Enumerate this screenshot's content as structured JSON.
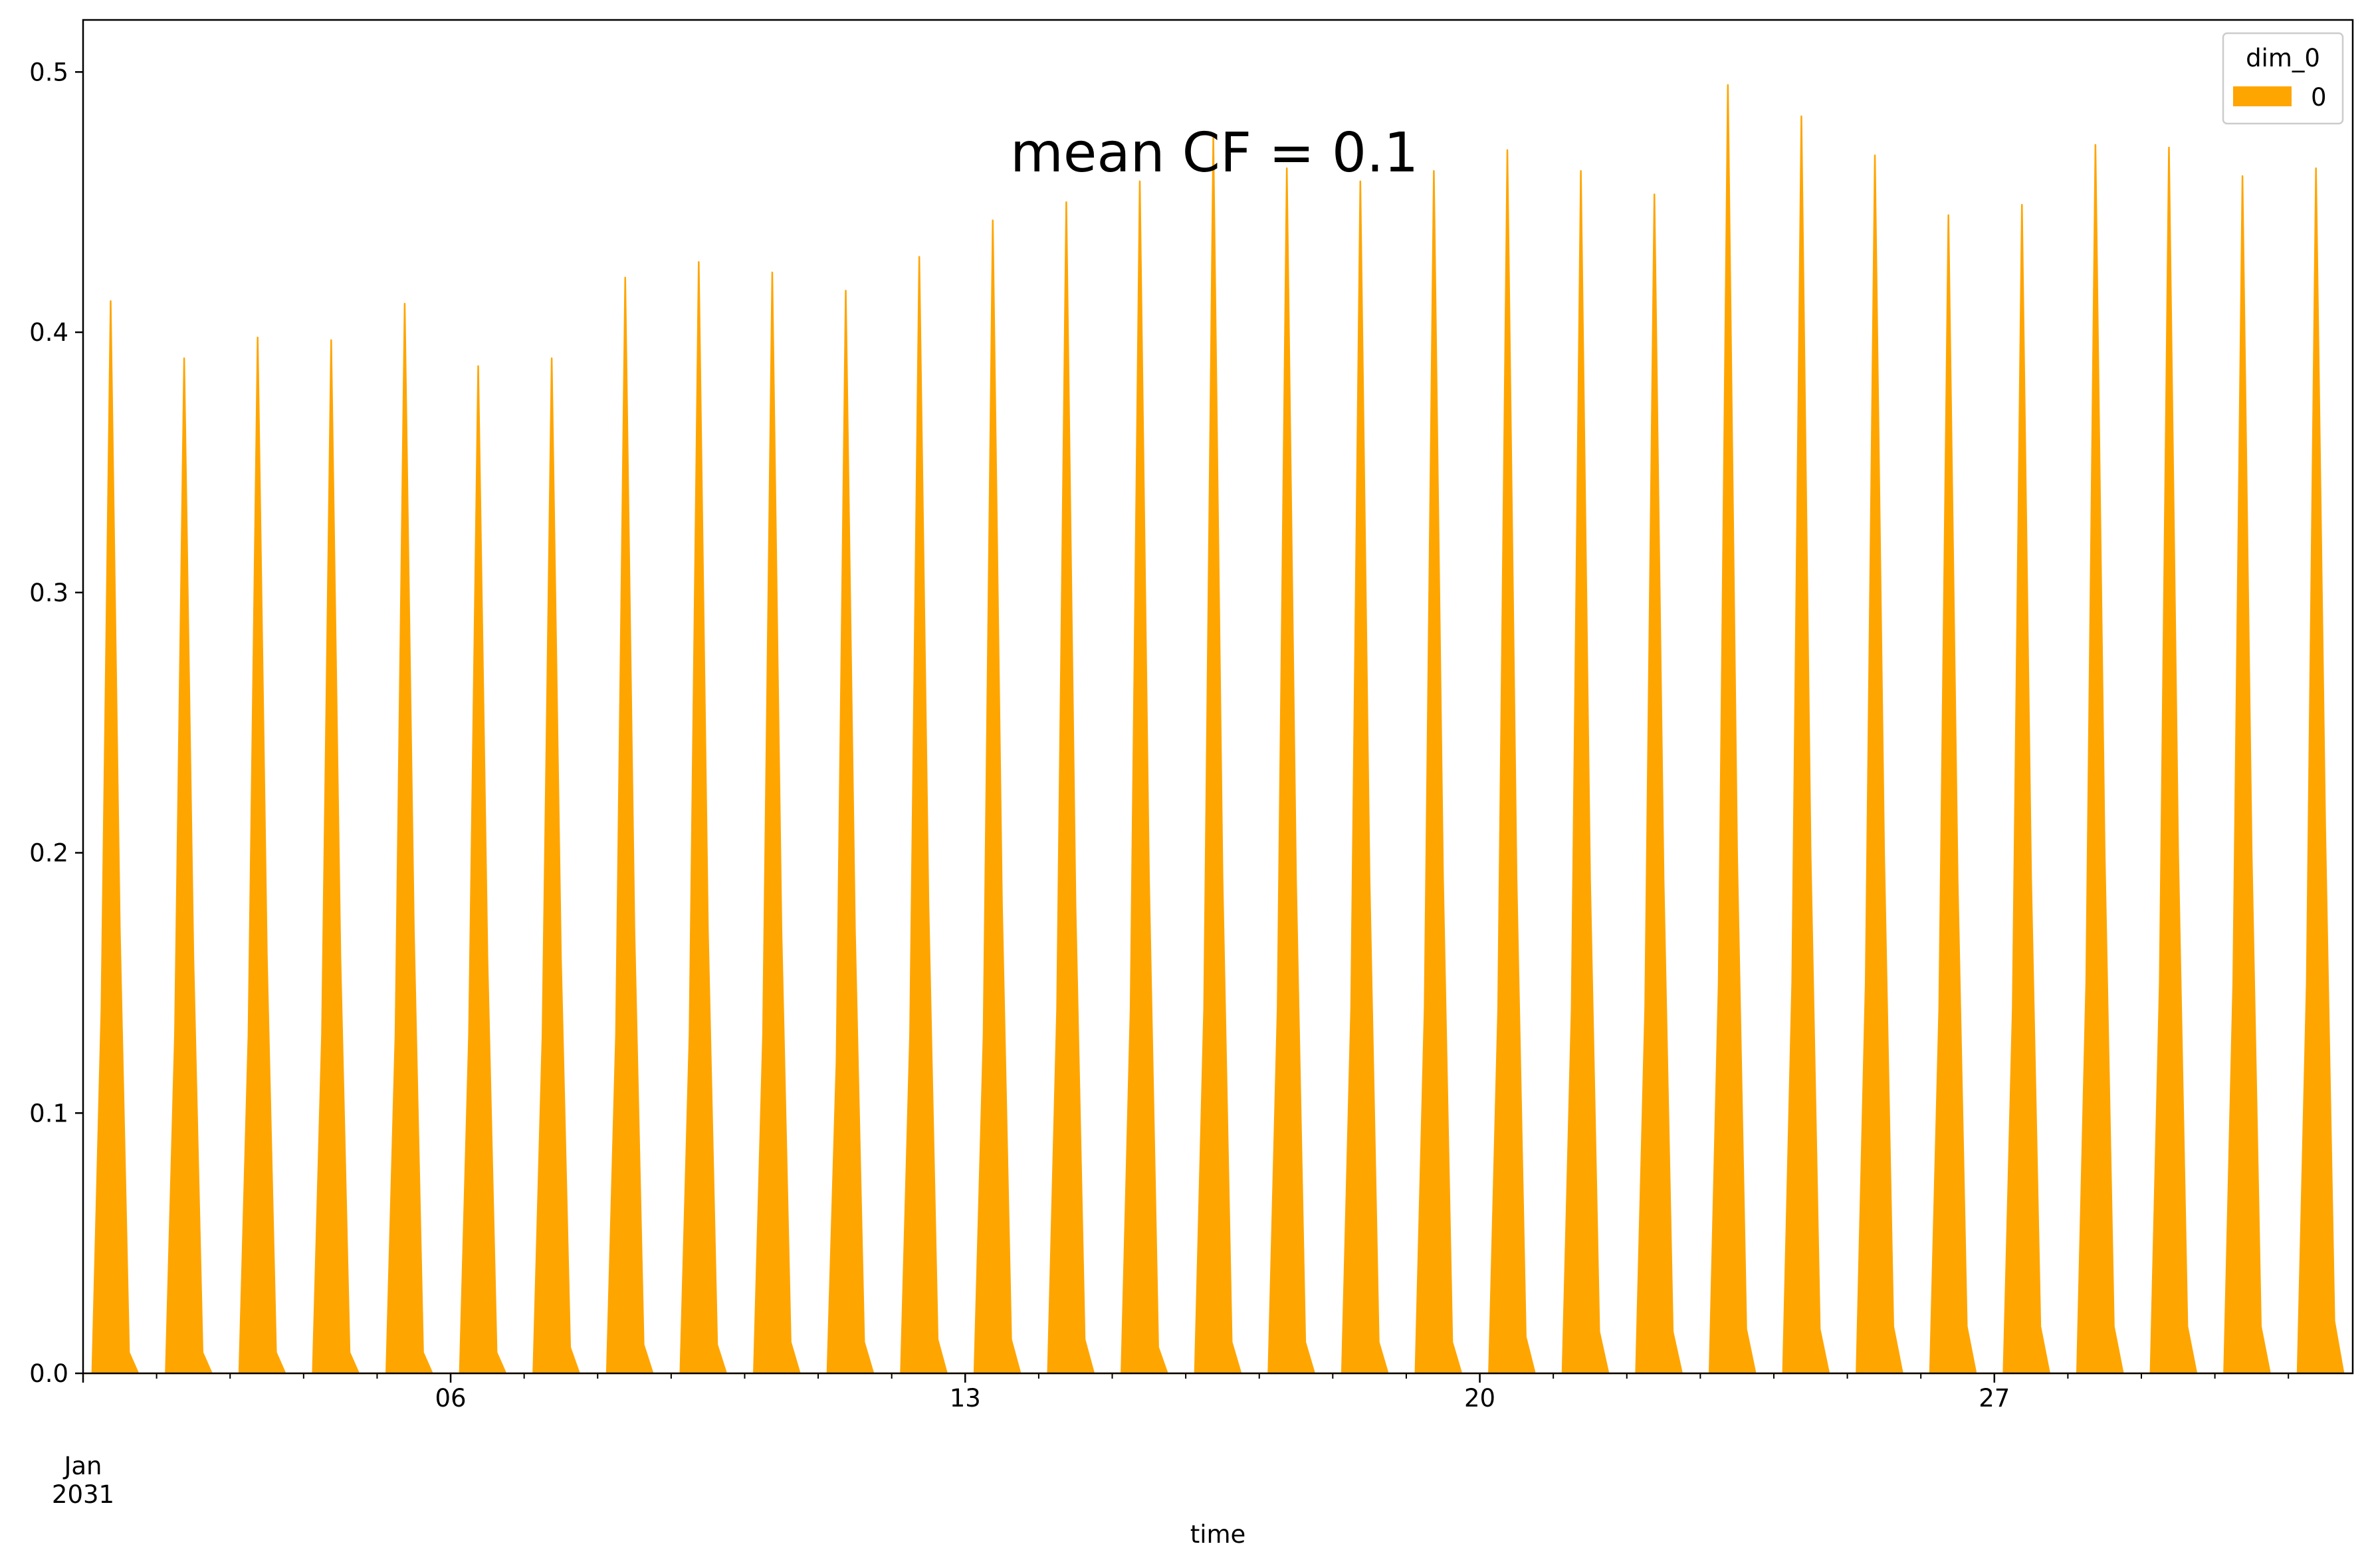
{
  "chart_data": {
    "type": "area",
    "title": "",
    "annotation": "mean CF = 0.1",
    "xlabel": "time",
    "ylabel": "",
    "x_start": "2031-01-01",
    "x_end": "2031-01-31 21:00",
    "x_step_hours": 3,
    "x_ticks": [
      {
        "date": "2031-01-06",
        "label": "06"
      },
      {
        "date": "2031-01-13",
        "label": "13"
      },
      {
        "date": "2031-01-20",
        "label": "20"
      },
      {
        "date": "2031-01-27",
        "label": "27"
      }
    ],
    "x_start_label": "Jan",
    "x_start_label_year": "2031",
    "ylim": [
      0,
      0.52
    ],
    "y_ticks": [
      0.0,
      0.1,
      0.2,
      0.3,
      0.4,
      0.5
    ],
    "y_tick_labels": [
      "0.0",
      "0.1",
      "0.2",
      "0.3",
      "0.4",
      "0.5"
    ],
    "grid": false,
    "legend": {
      "title": "dim_0",
      "placement": "top-right"
    },
    "series": [
      {
        "name": "0",
        "color": "#FFA500",
        "daily_profile_3h": [
          0,
          0,
          0.14,
          0.412,
          0.17,
          0.008,
          0,
          0
        ],
        "values": [
          0,
          0,
          0.14,
          0.412,
          0.17,
          0.008,
          0,
          0,
          0,
          0,
          0.13,
          0.39,
          0.16,
          0.008,
          0,
          0,
          0,
          0,
          0.13,
          0.398,
          0.16,
          0.008,
          0,
          0,
          0,
          0,
          0.13,
          0.397,
          0.16,
          0.008,
          0,
          0,
          0,
          0,
          0.13,
          0.411,
          0.17,
          0.008,
          0,
          0,
          0,
          0,
          0.13,
          0.387,
          0.16,
          0.008,
          0,
          0,
          0,
          0,
          0.13,
          0.39,
          0.16,
          0.01,
          0,
          0,
          0,
          0,
          0.13,
          0.421,
          0.17,
          0.011,
          0,
          0,
          0,
          0,
          0.13,
          0.427,
          0.17,
          0.011,
          0,
          0,
          0,
          0,
          0.13,
          0.423,
          0.17,
          0.012,
          0,
          0,
          0,
          0,
          0.12,
          0.416,
          0.17,
          0.012,
          0,
          0,
          0,
          0,
          0.13,
          0.429,
          0.18,
          0.013,
          0,
          0,
          0,
          0,
          0.13,
          0.443,
          0.18,
          0.013,
          0,
          0,
          0,
          0,
          0.14,
          0.45,
          0.18,
          0.013,
          0,
          0,
          0,
          0,
          0.14,
          0.458,
          0.19,
          0.01,
          0,
          0,
          0,
          0,
          0.14,
          0.475,
          0.19,
          0.012,
          0,
          0,
          0,
          0,
          0.14,
          0.463,
          0.19,
          0.012,
          0,
          0,
          0,
          0,
          0.14,
          0.458,
          0.19,
          0.012,
          0,
          0,
          0,
          0,
          0.14,
          0.462,
          0.19,
          0.012,
          0,
          0,
          0,
          0,
          0.14,
          0.47,
          0.19,
          0.014,
          0,
          0,
          0,
          0,
          0.14,
          0.462,
          0.19,
          0.016,
          0,
          0,
          0,
          0,
          0.14,
          0.453,
          0.19,
          0.016,
          0,
          0,
          0,
          0,
          0.15,
          0.495,
          0.2,
          0.017,
          0,
          0,
          0,
          0,
          0.15,
          0.483,
          0.2,
          0.017,
          0,
          0,
          0,
          0,
          0.15,
          0.468,
          0.2,
          0.018,
          0,
          0,
          0,
          0,
          0.14,
          0.445,
          0.19,
          0.018,
          0,
          0,
          0,
          0,
          0.14,
          0.449,
          0.19,
          0.018,
          0,
          0,
          0,
          0,
          0.15,
          0.472,
          0.2,
          0.018,
          0,
          0,
          0,
          0,
          0.15,
          0.471,
          0.2,
          0.018,
          0,
          0,
          0,
          0,
          0.15,
          0.46,
          0.2,
          0.018,
          0,
          0,
          0,
          0,
          0.15,
          0.463,
          0.21,
          0.02,
          0,
          0
        ]
      }
    ]
  }
}
